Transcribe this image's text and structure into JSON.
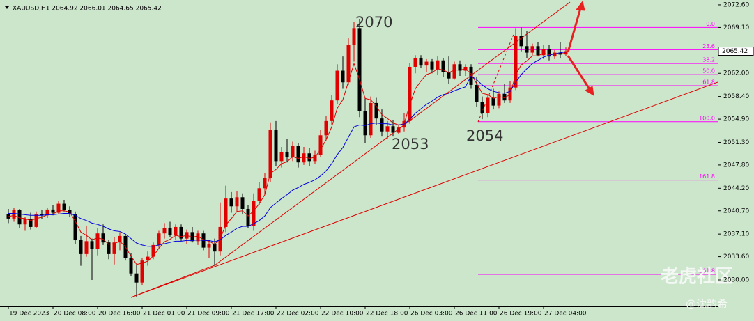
{
  "chart_data": {
    "type": "candlestick",
    "title": "XAUUSD,H1  2064.92 2066.01 2064.65 2065.42",
    "bull_color": "#e00000",
    "bear_color": "#000000",
    "open": [
      2040.2,
      2039.5,
      2040.8,
      2038.6,
      2039.4,
      2038.2,
      2040.2,
      2040.0,
      2040.9,
      2040.4,
      2041.8,
      2040.8,
      2040.2,
      2036.2,
      2034.0,
      2036.0,
      2034.8,
      2037.2,
      2035.8,
      2034.0,
      2035.8,
      2036.8,
      2033.4,
      2031.0,
      2029.6,
      2033.0,
      2033.6,
      2035.4,
      2037.2,
      2038.0,
      2037.0,
      2038.2,
      2036.4,
      2037.4,
      2036.0,
      2037.2,
      2035.0,
      2035.6,
      2034.4,
      2038.2,
      2042.6,
      2041.4,
      2042.8,
      2041.0,
      2038.4,
      2042.2,
      2044.2,
      2045.8,
      2053.2,
      2048.4,
      2049.8,
      2049.0,
      2050.8,
      2048.2,
      2049.6,
      2048.4,
      2049.4,
      2052.4,
      2054.6,
      2057.8,
      2062.4,
      2060.6,
      2066.4,
      2069.0,
      2056.2,
      2052.4,
      2057.4,
      2055.0,
      2053.0,
      2053.8,
      2052.8,
      2053.6,
      2054.6,
      2063.0,
      2064.4,
      2063.2,
      2063.8,
      2062.6,
      2064.0,
      2062.2,
      2061.2,
      2063.4,
      2062.4,
      2063.0,
      2060.2,
      2057.6,
      2055.8,
      2058.2,
      2057.0,
      2058.8,
      2057.8,
      2059.8,
      2067.8,
      2066.2,
      2065.2,
      2066.2,
      2064.8,
      2065.8,
      2064.6,
      2065.2,
      2064.92
    ],
    "high": [
      2041.0,
      2041.2,
      2041.0,
      2039.8,
      2040.4,
      2040.6,
      2040.8,
      2041.2,
      2041.6,
      2042.2,
      2042.4,
      2041.4,
      2040.6,
      2036.8,
      2038.4,
      2036.4,
      2038.0,
      2038.6,
      2036.2,
      2036.6,
      2037.4,
      2037.0,
      2034.2,
      2032.4,
      2033.4,
      2034.4,
      2035.8,
      2037.6,
      2038.8,
      2039.0,
      2038.6,
      2038.6,
      2037.8,
      2038.2,
      2037.6,
      2037.6,
      2036.2,
      2036.4,
      2042.0,
      2044.6,
      2043.6,
      2043.8,
      2043.4,
      2041.6,
      2043.4,
      2045.2,
      2046.6,
      2054.4,
      2054.6,
      2050.6,
      2051.8,
      2051.4,
      2051.2,
      2050.6,
      2050.4,
      2050.0,
      2053.2,
      2055.4,
      2058.6,
      2063.4,
      2064.6,
      2067.4,
      2070.0,
      2070.4,
      2058.2,
      2058.4,
      2058.2,
      2056.4,
      2054.6,
      2054.8,
      2054.0,
      2055.8,
      2063.6,
      2064.8,
      2064.8,
      2064.2,
      2064.2,
      2064.6,
      2064.4,
      2064.6,
      2063.8,
      2064.0,
      2063.4,
      2063.4,
      2061.4,
      2058.4,
      2058.6,
      2059.6,
      2059.2,
      2060.4,
      2060.8,
      2069.0,
      2069.1,
      2068.6,
      2066.6,
      2066.8,
      2066.4,
      2066.4,
      2065.6,
      2066.8,
      2066.01
    ],
    "low": [
      2038.8,
      2039.0,
      2038.0,
      2037.6,
      2037.8,
      2038.0,
      2039.4,
      2039.6,
      2040.0,
      2040.2,
      2040.6,
      2039.8,
      2035.6,
      2032.2,
      2033.6,
      2030.0,
      2033.8,
      2035.4,
      2033.2,
      2032.4,
      2034.6,
      2033.0,
      2030.6,
      2027.4,
      2029.2,
      2032.2,
      2033.2,
      2035.0,
      2036.4,
      2036.6,
      2036.2,
      2036.0,
      2035.6,
      2035.8,
      2035.4,
      2034.6,
      2033.4,
      2032.2,
      2033.8,
      2037.4,
      2040.4,
      2040.6,
      2040.2,
      2038.0,
      2037.6,
      2041.6,
      2043.2,
      2045.2,
      2047.6,
      2047.4,
      2048.2,
      2048.4,
      2047.4,
      2047.8,
      2047.6,
      2048.0,
      2049.0,
      2051.6,
      2054.0,
      2057.2,
      2059.6,
      2060.2,
      2063.8,
      2055.2,
      2051.2,
      2052.0,
      2054.0,
      2052.2,
      2051.8,
      2052.2,
      2052.6,
      2053.0,
      2054.2,
      2062.0,
      2062.8,
      2062.2,
      2062.0,
      2061.8,
      2061.4,
      2060.4,
      2061.0,
      2061.6,
      2061.6,
      2059.6,
      2056.8,
      2054.9,
      2055.2,
      2056.4,
      2056.6,
      2057.4,
      2057.4,
      2059.4,
      2065.4,
      2064.4,
      2064.8,
      2064.6,
      2064.2,
      2064.0,
      2064.2,
      2064.4,
      2064.65
    ],
    "close": [
      2039.5,
      2040.8,
      2038.6,
      2039.4,
      2038.2,
      2040.2,
      2040.0,
      2040.9,
      2040.4,
      2041.8,
      2040.8,
      2040.2,
      2036.2,
      2034.0,
      2036.0,
      2034.8,
      2037.2,
      2035.8,
      2034.0,
      2035.8,
      2036.8,
      2033.4,
      2031.0,
      2029.6,
      2033.0,
      2033.6,
      2035.4,
      2037.2,
      2038.0,
      2037.0,
      2038.2,
      2036.4,
      2037.4,
      2036.0,
      2037.2,
      2035.0,
      2035.6,
      2034.4,
      2038.2,
      2042.6,
      2041.4,
      2042.8,
      2041.0,
      2038.4,
      2042.2,
      2044.2,
      2045.8,
      2053.2,
      2048.4,
      2049.8,
      2049.0,
      2050.8,
      2048.2,
      2049.6,
      2048.4,
      2049.4,
      2052.4,
      2054.6,
      2057.8,
      2062.4,
      2060.6,
      2066.4,
      2069.0,
      2056.2,
      2052.4,
      2057.4,
      2055.0,
      2053.0,
      2053.8,
      2052.8,
      2053.6,
      2054.6,
      2063.0,
      2064.4,
      2063.2,
      2063.8,
      2062.6,
      2064.0,
      2062.2,
      2061.2,
      2063.4,
      2062.4,
      2063.0,
      2060.2,
      2057.6,
      2055.8,
      2058.2,
      2057.0,
      2058.8,
      2057.8,
      2059.8,
      2067.8,
      2066.2,
      2065.2,
      2066.2,
      2064.8,
      2065.8,
      2064.6,
      2065.2,
      2064.9,
      2065.42
    ],
    "moving_averages": [
      {
        "color": "#e00000",
        "values": [
          2039.8,
          2040.0,
          2039.6,
          2039.5,
          2039.2,
          2039.5,
          2039.7,
          2040.1,
          2040.2,
          2040.7,
          2040.7,
          2040.5,
          2039.1,
          2037.4,
          2036.9,
          2036.2,
          2036.5,
          2036.3,
          2035.5,
          2035.6,
          2036.0,
          2035.1,
          2033.7,
          2032.4,
          2032.6,
          2032.9,
          2033.7,
          2034.9,
          2035.9,
          2036.3,
          2036.9,
          2036.7,
          2036.9,
          2036.6,
          2036.8,
          2036.2,
          2036.0,
          2035.5,
          2036.4,
          2038.5,
          2039.5,
          2040.6,
          2040.7,
          2039.9,
          2040.7,
          2041.8,
          2043.2,
          2046.5,
          2047.1,
          2048.0,
          2048.3,
          2049.1,
          2048.8,
          2049.1,
          2048.8,
          2049.0,
          2050.2,
          2051.7,
          2053.7,
          2056.6,
          2057.9,
          2060.7,
          2063.5,
          2061.0,
          2058.1,
          2057.9,
          2056.9,
          2055.6,
          2055.0,
          2054.3,
          2054.0,
          2054.2,
          2057.1,
          2059.6,
          2060.8,
          2061.8,
          2062.1,
          2062.7,
          2062.5,
          2062.1,
          2062.5,
          2062.5,
          2062.7,
          2061.9,
          2060.4,
          2058.9,
          2058.7,
          2058.1,
          2058.4,
          2058.2,
          2058.7,
          2061.8,
          2063.3,
          2063.9,
          2064.7,
          2064.7,
          2065.1,
          2064.9,
          2065.0,
          2065.0,
          2065.1
        ]
      },
      {
        "color": "#0000e0",
        "values": [
          2040.3,
          2040.3,
          2040.2,
          2040.1,
          2040.0,
          2040.0,
          2040.0,
          2040.1,
          2040.1,
          2040.2,
          2040.3,
          2040.3,
          2040.0,
          2039.5,
          2039.2,
          2038.8,
          2038.6,
          2038.3,
          2037.9,
          2037.6,
          2037.5,
          2037.1,
          2036.4,
          2035.7,
          2035.4,
          2035.2,
          2035.2,
          2035.4,
          2035.6,
          2035.8,
          2036.0,
          2036.0,
          2036.1,
          2036.1,
          2036.2,
          2036.1,
          2036.1,
          2035.9,
          2036.2,
          2036.9,
          2037.4,
          2038.0,
          2038.3,
          2038.3,
          2038.7,
          2039.2,
          2039.9,
          2041.2,
          2041.9,
          2042.6,
          2043.2,
          2043.9,
          2044.3,
          2044.8,
          2045.1,
          2045.5,
          2046.1,
          2046.9,
          2048.0,
          2049.4,
          2050.5,
          2052.1,
          2053.7,
          2054.0,
          2053.9,
          2054.2,
          2054.3,
          2054.2,
          2054.2,
          2054.0,
          2054.0,
          2054.1,
          2054.9,
          2055.8,
          2056.5,
          2057.2,
          2057.7,
          2058.3,
          2058.7,
          2058.9,
          2059.3,
          2059.6,
          2059.9,
          2061.6,
          2061.0,
          2060.2,
          2059.6,
          2059.2,
          2059.0,
          2058.9,
          2059.2,
          2060.6,
          2061.8,
          2062.7,
          2063.5,
          2064.0,
          2064.5,
          2064.8,
          2065.0,
          2065.2,
          2065.3
        ]
      }
    ],
    "ylim": [
      2025.9,
      2073.35
    ],
    "yticks": [
      {
        "value": 2072.6,
        "label": "2072.60"
      },
      {
        "value": 2069.1,
        "label": "2069.10"
      },
      {
        "value": 2062,
        "label": "2062.00"
      },
      {
        "value": 2058.4,
        "label": "2058.40"
      },
      {
        "value": 2054.9,
        "label": "2054.90"
      },
      {
        "value": 2051.3,
        "label": "2051.30"
      },
      {
        "value": 2047.8,
        "label": "2047.80"
      },
      {
        "value": 2044.2,
        "label": "2044.20"
      },
      {
        "value": 2040.7,
        "label": "2040.70"
      },
      {
        "value": 2037.1,
        "label": "2037.10"
      },
      {
        "value": 2033.6,
        "label": "2033.60"
      },
      {
        "value": 2030,
        "label": "2030.00"
      }
    ],
    "last_price": 2065.42,
    "xticks": [
      {
        "value": -1,
        "label": "19 Dec 2023"
      },
      {
        "value": 7,
        "label": "20 Dec 08:00"
      },
      {
        "value": 15,
        "label": "20 Dec 16:00"
      },
      {
        "value": 23,
        "label": "21 Dec 01:00"
      },
      {
        "value": 31,
        "label": "21 Dec 09:00"
      },
      {
        "value": 39,
        "label": "21 Dec 17:00"
      },
      {
        "value": 47,
        "label": "22 Dec 02:00"
      },
      {
        "value": 55,
        "label": "22 Dec 10:00"
      },
      {
        "value": 63,
        "label": "22 Dec 18:00"
      },
      {
        "value": 71,
        "label": "26 Dec 03:00"
      },
      {
        "value": 79,
        "label": "26 Dec 11:00"
      },
      {
        "value": 87,
        "label": "26 Dec 19:00"
      },
      {
        "value": 95,
        "label": "27 Dec 04:00"
      }
    ],
    "fib": {
      "color": "#ff00ff",
      "levels": [
        {
          "label": "0.0",
          "price": 2069.1
        },
        {
          "label": "23.6",
          "price": 2065.65
        },
        {
          "label": "38.2",
          "price": 2063.52
        },
        {
          "label": "50.0",
          "price": 2061.8
        },
        {
          "label": "61.8",
          "price": 2060.08
        },
        {
          "label": "100.0",
          "price": 2054.5
        },
        {
          "label": "161.8",
          "price": 2045.46
        },
        {
          "label": "261.8",
          "price": 2030.86
        }
      ]
    },
    "annotations": [
      "2070",
      "2053",
      "2054"
    ],
    "watermark": "老虎社区",
    "author": "@沈韵希"
  }
}
